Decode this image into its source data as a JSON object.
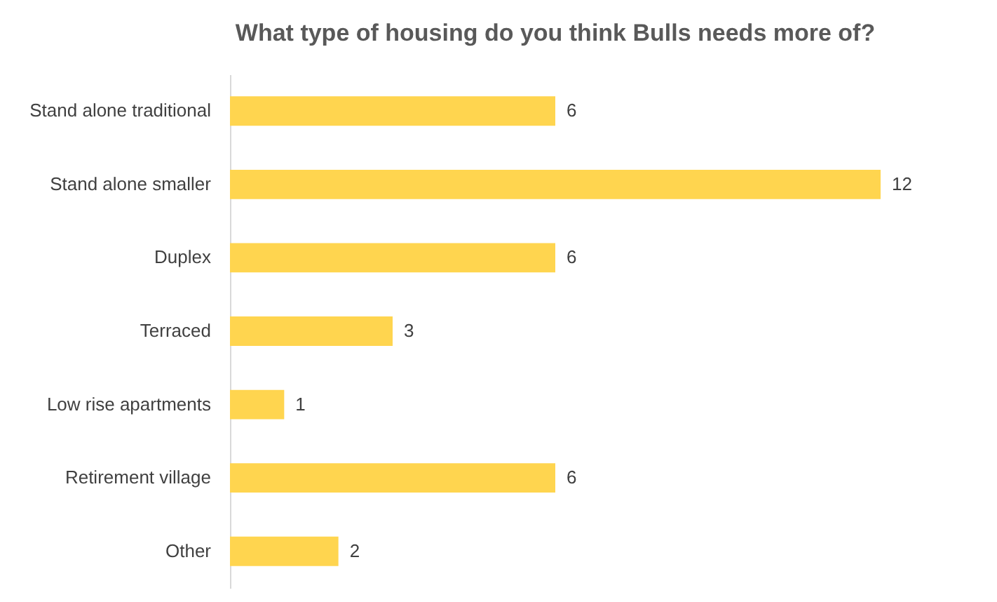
{
  "chart_data": {
    "type": "bar",
    "orientation": "horizontal",
    "title": "What type of housing do you think Bulls needs more of?",
    "categories": [
      "Stand alone traditional",
      "Stand alone smaller",
      "Duplex",
      "Terraced",
      "Low rise apartments",
      "Retirement village",
      "Other"
    ],
    "values": [
      6,
      12,
      6,
      3,
      1,
      6,
      2
    ],
    "color": "#ffd54f",
    "data_labels": true
  }
}
